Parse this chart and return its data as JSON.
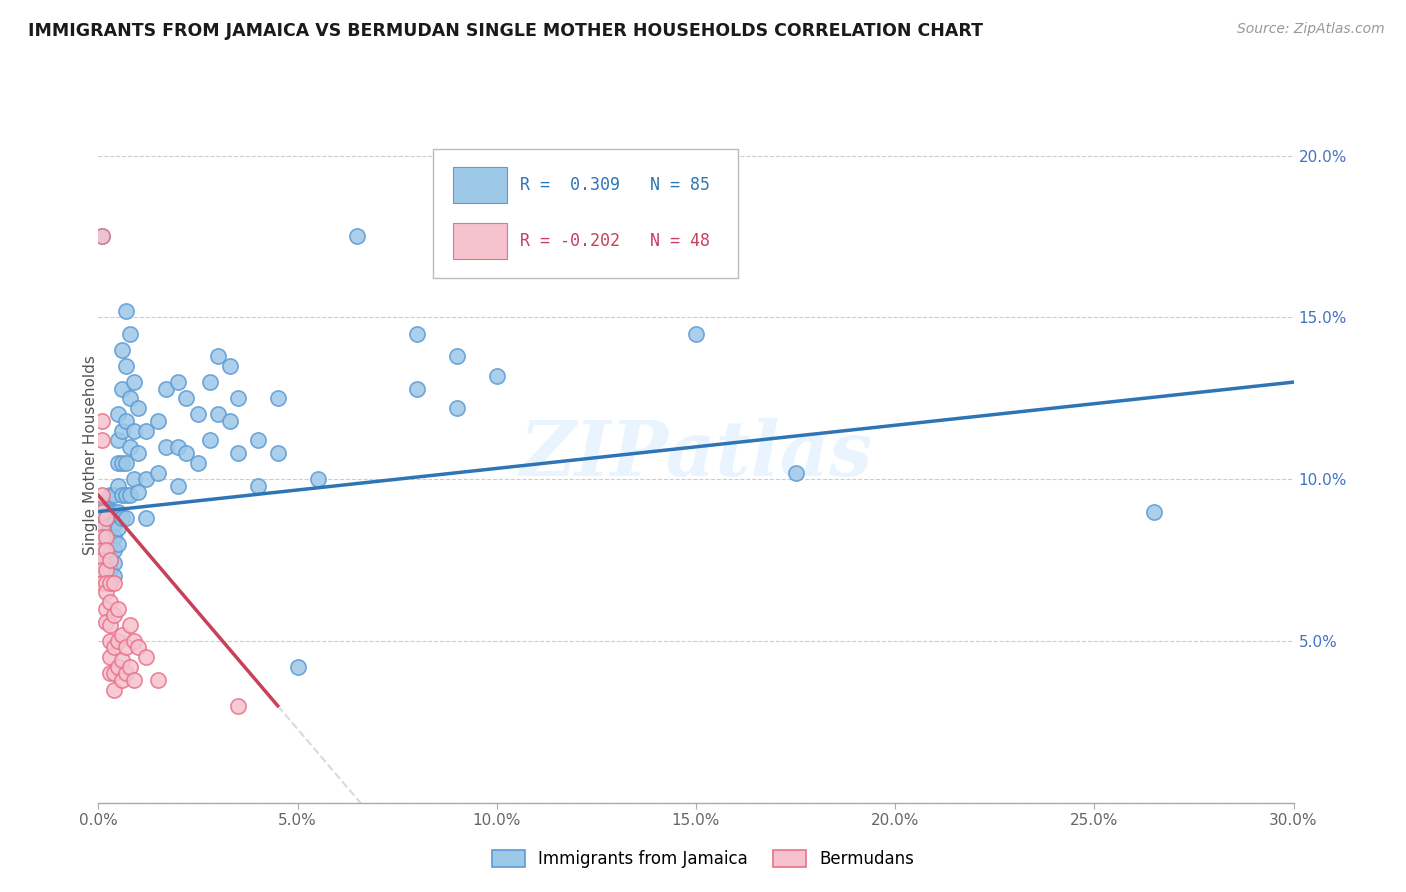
{
  "title": "IMMIGRANTS FROM JAMAICA VS BERMUDAN SINGLE MOTHER HOUSEHOLDS CORRELATION CHART",
  "source": "Source: ZipAtlas.com",
  "xlim": [
    0.0,
    0.3
  ],
  "ylim": [
    0.0,
    0.215
  ],
  "ylabel": "Single Mother Households",
  "yticks": [
    0.0,
    0.05,
    0.1,
    0.15,
    0.2
  ],
  "xticks": [
    0.0,
    0.05,
    0.1,
    0.15,
    0.2,
    0.25,
    0.3
  ],
  "watermark": "ZIPatlas",
  "blue_color": "#9ec8e8",
  "blue_edge": "#5b9bd5",
  "pink_color": "#f5c2ce",
  "pink_edge": "#e8728a",
  "trend_blue": "#2e75b6",
  "trend_pink": "#c9405a",
  "trend_gray": "#d0c8c8",
  "blue_scatter": [
    [
      0.001,
      0.175
    ],
    [
      0.001,
      0.09
    ],
    [
      0.001,
      0.085
    ],
    [
      0.001,
      0.082
    ],
    [
      0.002,
      0.092
    ],
    [
      0.002,
      0.088
    ],
    [
      0.002,
      0.083
    ],
    [
      0.002,
      0.078
    ],
    [
      0.002,
      0.074
    ],
    [
      0.003,
      0.095
    ],
    [
      0.003,
      0.09
    ],
    [
      0.003,
      0.085
    ],
    [
      0.003,
      0.082
    ],
    [
      0.003,
      0.078
    ],
    [
      0.003,
      0.075
    ],
    [
      0.003,
      0.072
    ],
    [
      0.004,
      0.095
    ],
    [
      0.004,
      0.09
    ],
    [
      0.004,
      0.086
    ],
    [
      0.004,
      0.082
    ],
    [
      0.004,
      0.078
    ],
    [
      0.004,
      0.074
    ],
    [
      0.004,
      0.07
    ],
    [
      0.005,
      0.12
    ],
    [
      0.005,
      0.112
    ],
    [
      0.005,
      0.105
    ],
    [
      0.005,
      0.098
    ],
    [
      0.005,
      0.09
    ],
    [
      0.005,
      0.085
    ],
    [
      0.005,
      0.08
    ],
    [
      0.006,
      0.14
    ],
    [
      0.006,
      0.128
    ],
    [
      0.006,
      0.115
    ],
    [
      0.006,
      0.105
    ],
    [
      0.006,
      0.095
    ],
    [
      0.006,
      0.088
    ],
    [
      0.007,
      0.152
    ],
    [
      0.007,
      0.135
    ],
    [
      0.007,
      0.118
    ],
    [
      0.007,
      0.105
    ],
    [
      0.007,
      0.095
    ],
    [
      0.007,
      0.088
    ],
    [
      0.008,
      0.145
    ],
    [
      0.008,
      0.125
    ],
    [
      0.008,
      0.11
    ],
    [
      0.008,
      0.095
    ],
    [
      0.009,
      0.13
    ],
    [
      0.009,
      0.115
    ],
    [
      0.009,
      0.1
    ],
    [
      0.01,
      0.122
    ],
    [
      0.01,
      0.108
    ],
    [
      0.01,
      0.096
    ],
    [
      0.012,
      0.115
    ],
    [
      0.012,
      0.1
    ],
    [
      0.012,
      0.088
    ],
    [
      0.015,
      0.118
    ],
    [
      0.015,
      0.102
    ],
    [
      0.017,
      0.128
    ],
    [
      0.017,
      0.11
    ],
    [
      0.02,
      0.13
    ],
    [
      0.02,
      0.11
    ],
    [
      0.02,
      0.098
    ],
    [
      0.022,
      0.125
    ],
    [
      0.022,
      0.108
    ],
    [
      0.025,
      0.12
    ],
    [
      0.025,
      0.105
    ],
    [
      0.028,
      0.13
    ],
    [
      0.028,
      0.112
    ],
    [
      0.03,
      0.138
    ],
    [
      0.03,
      0.12
    ],
    [
      0.033,
      0.135
    ],
    [
      0.033,
      0.118
    ],
    [
      0.035,
      0.125
    ],
    [
      0.035,
      0.108
    ],
    [
      0.04,
      0.112
    ],
    [
      0.04,
      0.098
    ],
    [
      0.045,
      0.125
    ],
    [
      0.045,
      0.108
    ],
    [
      0.05,
      0.042
    ],
    [
      0.055,
      0.1
    ],
    [
      0.065,
      0.175
    ],
    [
      0.08,
      0.145
    ],
    [
      0.08,
      0.128
    ],
    [
      0.09,
      0.138
    ],
    [
      0.09,
      0.122
    ],
    [
      0.1,
      0.132
    ],
    [
      0.15,
      0.145
    ],
    [
      0.175,
      0.102
    ],
    [
      0.265,
      0.09
    ]
  ],
  "pink_scatter": [
    [
      0.001,
      0.175
    ],
    [
      0.001,
      0.118
    ],
    [
      0.001,
      0.112
    ],
    [
      0.001,
      0.095
    ],
    [
      0.001,
      0.09
    ],
    [
      0.001,
      0.085
    ],
    [
      0.001,
      0.082
    ],
    [
      0.001,
      0.078
    ],
    [
      0.001,
      0.075
    ],
    [
      0.001,
      0.072
    ],
    [
      0.001,
      0.068
    ],
    [
      0.002,
      0.088
    ],
    [
      0.002,
      0.082
    ],
    [
      0.002,
      0.078
    ],
    [
      0.002,
      0.072
    ],
    [
      0.002,
      0.068
    ],
    [
      0.002,
      0.065
    ],
    [
      0.002,
      0.06
    ],
    [
      0.002,
      0.056
    ],
    [
      0.003,
      0.075
    ],
    [
      0.003,
      0.068
    ],
    [
      0.003,
      0.062
    ],
    [
      0.003,
      0.055
    ],
    [
      0.003,
      0.05
    ],
    [
      0.003,
      0.045
    ],
    [
      0.003,
      0.04
    ],
    [
      0.004,
      0.068
    ],
    [
      0.004,
      0.058
    ],
    [
      0.004,
      0.048
    ],
    [
      0.004,
      0.04
    ],
    [
      0.004,
      0.035
    ],
    [
      0.005,
      0.06
    ],
    [
      0.005,
      0.05
    ],
    [
      0.005,
      0.042
    ],
    [
      0.006,
      0.052
    ],
    [
      0.006,
      0.044
    ],
    [
      0.006,
      0.038
    ],
    [
      0.007,
      0.048
    ],
    [
      0.007,
      0.04
    ],
    [
      0.008,
      0.055
    ],
    [
      0.008,
      0.042
    ],
    [
      0.009,
      0.05
    ],
    [
      0.009,
      0.038
    ],
    [
      0.01,
      0.048
    ],
    [
      0.012,
      0.045
    ],
    [
      0.015,
      0.038
    ],
    [
      0.035,
      0.03
    ]
  ]
}
